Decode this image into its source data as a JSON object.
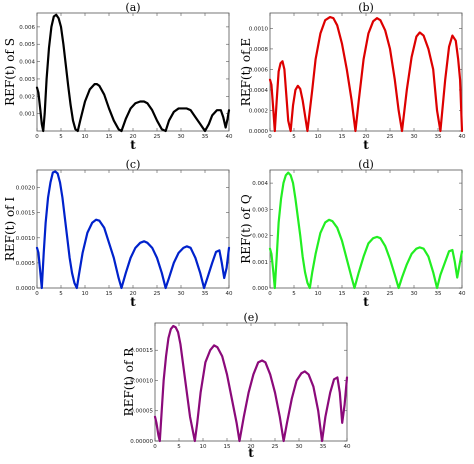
{
  "figure_labels": {
    "xlabel": "t"
  },
  "chart_data": [
    {
      "type": "line",
      "title": "(a)",
      "ylabel": "REF(t) of S",
      "xlabel": "t",
      "color": "#000000",
      "xlim": [
        0,
        40
      ],
      "ylim": [
        0,
        0.0068
      ],
      "xticks": [
        0,
        5,
        10,
        15,
        20,
        25,
        30,
        35,
        40
      ],
      "xtick_labels": [
        "0",
        "5",
        "10",
        "15",
        "20",
        "25",
        "30",
        "35",
        "40"
      ],
      "yticks": [
        0.001,
        0.002,
        0.003,
        0.004,
        0.005,
        0.006
      ],
      "ytick_labels": [
        "0.001",
        "0.002",
        "0.003",
        "0.004",
        "0.005",
        "0.006"
      ],
      "series": [
        {
          "x": [
            0,
            0.3,
            0.7,
            1.0,
            1.3,
            1.6,
            2.0,
            2.5,
            3.0,
            3.5,
            4.0,
            4.5,
            5.0,
            5.5,
            6.0,
            6.5,
            7.0,
            7.5,
            8.0,
            8.5,
            9.0,
            10.0,
            11.0,
            12.0,
            12.5,
            13.0,
            14.0,
            15.0,
            16.0,
            17.0,
            17.6,
            18.5,
            19.5,
            20.5,
            21.5,
            22.3,
            23.0,
            24.0,
            25.0,
            26.0,
            26.8,
            27.5,
            28.5,
            29.5,
            30.5,
            31.2,
            32.0,
            33.0,
            34.0,
            35.0,
            35.8,
            36.5,
            37.5,
            38.3,
            38.8,
            39.3,
            39.7,
            40.0
          ],
          "y": [
            0.0025,
            0.0022,
            0.0012,
            0.0004,
            0.0,
            0.001,
            0.003,
            0.0048,
            0.006,
            0.0066,
            0.0067,
            0.0065,
            0.006,
            0.005,
            0.0038,
            0.0026,
            0.0015,
            0.0006,
            0.0001,
            0.0,
            0.0006,
            0.0017,
            0.0024,
            0.0027,
            0.0027,
            0.0026,
            0.0021,
            0.0013,
            0.0006,
            0.0001,
            0.0,
            0.0007,
            0.0013,
            0.0016,
            0.0017,
            0.0017,
            0.0016,
            0.0012,
            0.0006,
            0.0001,
            0.0,
            0.0006,
            0.0011,
            0.0013,
            0.0013,
            0.0013,
            0.0012,
            0.0008,
            0.0004,
            0.0,
            0.0004,
            0.0009,
            0.0012,
            0.0012,
            0.0008,
            0.0002,
            0.0007,
            0.0012
          ]
        }
      ]
    },
    {
      "type": "line",
      "title": "(b)",
      "ylabel": "REF(t) of E",
      "xlabel": "t",
      "color": "#dd0000",
      "xlim": [
        0,
        40
      ],
      "ylim": [
        0,
        0.00115
      ],
      "xticks": [
        0,
        5,
        10,
        15,
        20,
        25,
        30,
        35,
        40
      ],
      "xtick_labels": [
        "0",
        "5",
        "10",
        "15",
        "20",
        "25",
        "30",
        "35",
        "40"
      ],
      "yticks": [
        0.0,
        0.0002,
        0.0004,
        0.0006,
        0.0008,
        0.001
      ],
      "ytick_labels": [
        "0.0000",
        "0.0002",
        "0.0004",
        "0.0006",
        "0.0008",
        "0.0010"
      ],
      "series": [
        {
          "x": [
            0,
            0.3,
            0.7,
            1.0,
            1.4,
            1.8,
            2.2,
            2.6,
            3.0,
            3.4,
            3.8,
            4.3,
            4.8,
            5.3,
            5.8,
            6.3,
            6.8,
            7.3,
            7.8,
            8.3,
            8.8,
            9.5,
            10.5,
            11.5,
            12.5,
            13.2,
            14.0,
            15.0,
            16.0,
            17.0,
            17.8,
            18.5,
            19.5,
            20.5,
            21.5,
            22.3,
            23.0,
            24.0,
            25.0,
            26.0,
            26.8,
            27.5,
            28.5,
            29.5,
            30.5,
            31.2,
            32.0,
            33.0,
            34.0,
            34.8,
            35.5,
            36.5,
            37.3,
            38.0,
            38.7,
            39.2,
            39.6,
            40.0
          ],
          "y": [
            0.0005,
            0.00045,
            0.0002,
            0.0,
            0.0003,
            0.00058,
            0.00066,
            0.00068,
            0.0006,
            0.00035,
            0.0001,
            0.0,
            0.00025,
            0.0004,
            0.00044,
            0.00041,
            0.0003,
            0.00015,
            0.0,
            0.0002,
            0.0004,
            0.0007,
            0.00095,
            0.00108,
            0.00111,
            0.0011,
            0.00103,
            0.00085,
            0.0006,
            0.0003,
            0.0,
            0.0003,
            0.0007,
            0.00095,
            0.00107,
            0.0011,
            0.00108,
            0.00098,
            0.0008,
            0.0005,
            0.0002,
            0.0,
            0.0004,
            0.00072,
            0.00092,
            0.00096,
            0.00093,
            0.0008,
            0.0006,
            0.0002,
            0.0,
            0.0005,
            0.00082,
            0.00093,
            0.00088,
            0.0007,
            0.0005,
            0.0
          ]
        }
      ]
    },
    {
      "type": "line",
      "title": "(c)",
      "ylabel": "REF(t) of I",
      "xlabel": "t",
      "color": "#0022cc",
      "xlim": [
        0,
        40
      ],
      "ylim": [
        0,
        0.00235
      ],
      "xticks": [
        0,
        5,
        10,
        15,
        20,
        25,
        30,
        35,
        40
      ],
      "xtick_labels": [
        "0",
        "5",
        "10",
        "15",
        "20",
        "25",
        "30",
        "35",
        "40"
      ],
      "yticks": [
        0.0,
        0.0005,
        0.001,
        0.0015,
        0.002
      ],
      "ytick_labels": [
        "0.0000",
        "0.0005",
        "0.0010",
        "0.0015",
        "0.0020"
      ],
      "series": [
        {
          "x": [
            0,
            0.3,
            0.7,
            1.0,
            1.4,
            1.8,
            2.3,
            2.8,
            3.3,
            3.8,
            4.3,
            4.8,
            5.3,
            5.8,
            6.3,
            6.8,
            7.3,
            7.8,
            8.3,
            8.8,
            9.5,
            10.5,
            11.5,
            12.3,
            13.0,
            14.0,
            15.0,
            16.0,
            17.0,
            17.6,
            18.5,
            19.5,
            20.5,
            21.5,
            22.3,
            23.0,
            24.0,
            25.0,
            26.0,
            26.8,
            27.5,
            28.5,
            29.5,
            30.5,
            31.2,
            32.0,
            33.0,
            34.0,
            34.8,
            35.5,
            36.5,
            37.3,
            38.0,
            38.5,
            39.0,
            39.5,
            40.0
          ],
          "y": [
            0.0008,
            0.0007,
            0.0003,
            0.0,
            0.0007,
            0.0013,
            0.0018,
            0.0021,
            0.0023,
            0.00232,
            0.00228,
            0.0021,
            0.0018,
            0.0014,
            0.001,
            0.0006,
            0.0003,
            0.0001,
            0.0,
            0.0003,
            0.0007,
            0.0011,
            0.0013,
            0.00136,
            0.00134,
            0.0012,
            0.0009,
            0.0006,
            0.0002,
            0.0,
            0.0003,
            0.0006,
            0.0008,
            0.0009,
            0.00093,
            0.0009,
            0.0008,
            0.0006,
            0.0003,
            0.0,
            0.0002,
            0.0005,
            0.0007,
            0.0008,
            0.00083,
            0.0008,
            0.0006,
            0.0003,
            0.0,
            0.0002,
            0.0005,
            0.00072,
            0.00075,
            0.0005,
            0.0002,
            0.0004,
            0.0008
          ]
        }
      ]
    },
    {
      "type": "line",
      "title": "(d)",
      "ylabel": "REF(t) of Q",
      "xlabel": "t",
      "color": "#22ee22",
      "xlim": [
        0,
        40
      ],
      "ylim": [
        0,
        0.0045
      ],
      "xticks": [
        0,
        5,
        10,
        15,
        20,
        25,
        30,
        35,
        40
      ],
      "xtick_labels": [
        "0",
        "5",
        "10",
        "15",
        "20",
        "25",
        "30",
        "35",
        "40"
      ],
      "yticks": [
        0.0,
        0.001,
        0.002,
        0.003,
        0.004
      ],
      "ytick_labels": [
        "0.000",
        "0.001",
        "0.002",
        "0.003",
        "0.004"
      ],
      "series": [
        {
          "x": [
            0,
            0.3,
            0.7,
            1.0,
            1.4,
            1.8,
            2.3,
            2.8,
            3.3,
            3.8,
            4.3,
            4.8,
            5.3,
            5.8,
            6.3,
            6.8,
            7.3,
            7.8,
            8.3,
            8.8,
            9.5,
            10.5,
            11.5,
            12.3,
            13.0,
            14.0,
            15.0,
            16.0,
            17.0,
            17.6,
            18.5,
            19.5,
            20.5,
            21.5,
            22.3,
            23.0,
            24.0,
            25.0,
            26.0,
            26.8,
            27.5,
            28.5,
            29.5,
            30.5,
            31.2,
            32.0,
            33.0,
            34.0,
            34.8,
            35.5,
            36.5,
            37.3,
            38.0,
            38.5,
            39.0,
            39.5,
            40.0
          ],
          "y": [
            0.0015,
            0.0013,
            0.0006,
            0.0,
            0.0012,
            0.0025,
            0.0034,
            0.004,
            0.0043,
            0.0044,
            0.0043,
            0.004,
            0.0034,
            0.0027,
            0.002,
            0.0012,
            0.0006,
            0.0002,
            0.0,
            0.0006,
            0.0013,
            0.0021,
            0.0025,
            0.0026,
            0.00255,
            0.0023,
            0.0018,
            0.0011,
            0.0004,
            0.0,
            0.0006,
            0.0012,
            0.0017,
            0.0019,
            0.00195,
            0.0019,
            0.0016,
            0.0011,
            0.0005,
            0.0,
            0.0004,
            0.0009,
            0.0013,
            0.0015,
            0.00155,
            0.0015,
            0.0012,
            0.0006,
            0.0,
            0.0005,
            0.001,
            0.0014,
            0.00145,
            0.001,
            0.0004,
            0.0009,
            0.0014
          ]
        }
      ]
    },
    {
      "type": "line",
      "title": "(e)",
      "ylabel": "REF(t) of R",
      "xlabel": "t",
      "color": "#8b0a7a",
      "xlim": [
        0,
        40
      ],
      "ylim": [
        0,
        0.000195
      ],
      "xticks": [
        0,
        5,
        10,
        15,
        20,
        25,
        30,
        35,
        40
      ],
      "xtick_labels": [
        "0",
        "5",
        "10",
        "15",
        "20",
        "25",
        "30",
        "35",
        "40"
      ],
      "yticks": [
        0.0,
        5e-05,
        0.0001,
        0.00015
      ],
      "ytick_labels": [
        "0.00000",
        "0.00005",
        "0.00010",
        "0.00015"
      ],
      "series": [
        {
          "x": [
            0,
            0.3,
            0.7,
            1.0,
            1.4,
            1.8,
            2.3,
            2.8,
            3.3,
            3.8,
            4.3,
            4.8,
            5.3,
            5.8,
            6.3,
            6.8,
            7.3,
            7.8,
            8.3,
            8.8,
            9.5,
            10.5,
            11.5,
            12.3,
            13.0,
            14.0,
            15.0,
            16.0,
            17.0,
            17.6,
            18.5,
            19.5,
            20.5,
            21.5,
            22.3,
            23.0,
            24.0,
            25.0,
            26.0,
            26.8,
            27.5,
            28.5,
            29.5,
            30.5,
            31.2,
            32.0,
            33.0,
            34.0,
            34.8,
            35.5,
            36.5,
            37.3,
            38.0,
            38.5,
            39.0,
            39.5,
            40.0
          ],
          "y": [
            4e-05,
            3e-05,
            1e-05,
            0.0,
            5e-05,
            0.0001,
            0.00014,
            0.00017,
            0.000185,
            0.00019,
            0.000188,
            0.00018,
            0.00016,
            0.00013,
            0.0001,
            7e-05,
            4e-05,
            2e-05,
            0.0,
            3e-05,
            8e-05,
            0.00013,
            0.00015,
            0.000158,
            0.000155,
            0.00014,
            0.00011,
            7e-05,
            3e-05,
            0.0,
            4e-05,
            8e-05,
            0.00011,
            0.00013,
            0.000133,
            0.00013,
            0.00011,
            8e-05,
            4e-05,
            0.0,
            3e-05,
            7e-05,
            0.0001,
            0.000112,
            0.000115,
            0.00011,
            9e-05,
            5e-05,
            0.0,
            4e-05,
            8e-05,
            0.000102,
            0.000105,
            8e-05,
            3e-05,
            6e-05,
            0.000105
          ]
        }
      ]
    }
  ]
}
